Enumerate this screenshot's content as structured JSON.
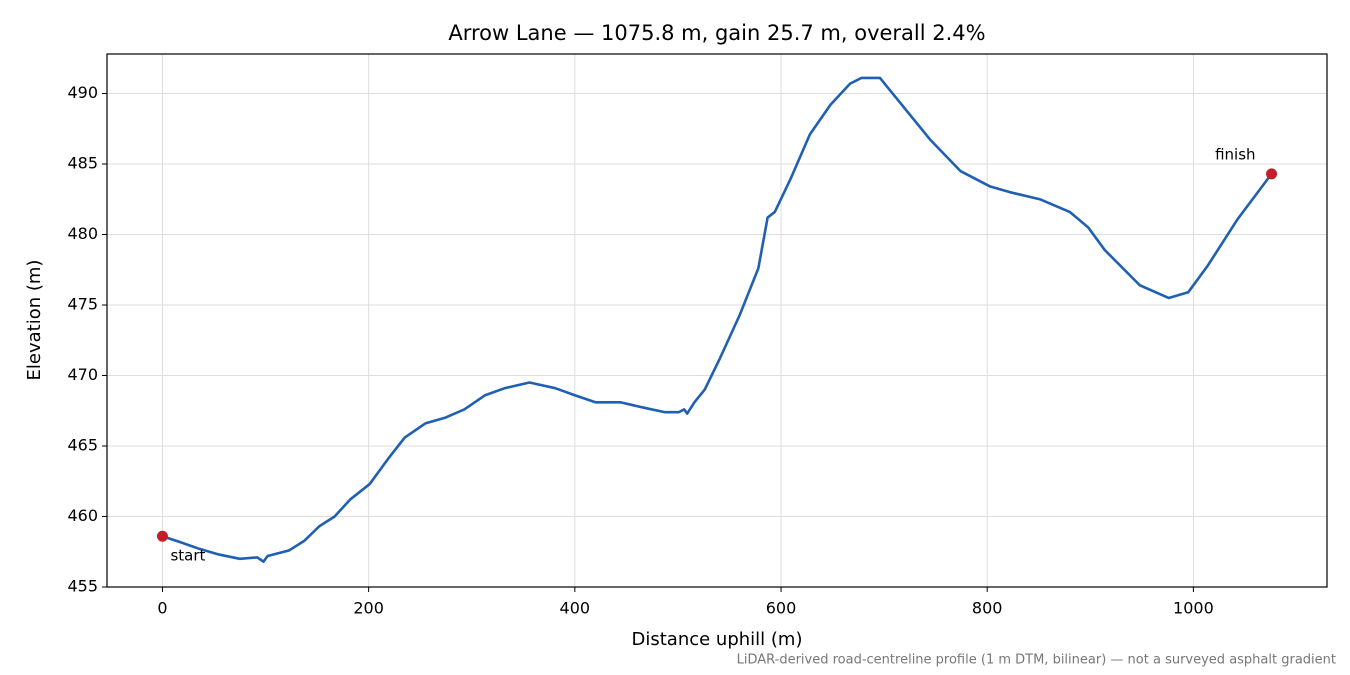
{
  "chart_data": {
    "type": "line",
    "title": "Arrow Lane — 1075.8 m, gain 25.7 m, overall 2.4%",
    "x_label": "Distance uphill (m)",
    "y_label": "Elevation (m)",
    "note": "LiDAR-derived road-centreline profile (1 m DTM, bilinear) — not a surveyed asphalt gradient",
    "x": [
      0,
      16.5,
      36,
      55,
      75,
      92,
      98,
      102,
      123,
      138,
      152,
      167,
      182,
      201,
      220,
      235,
      255,
      274,
      293,
      313,
      332,
      356,
      381,
      400,
      420,
      444,
      468,
      487,
      501,
      506,
      509,
      516,
      526,
      540,
      560,
      578,
      587,
      594,
      609,
      628,
      648,
      667,
      678,
      696,
      716,
      745,
      774,
      803,
      822,
      851,
      880,
      898,
      914,
      948,
      976,
      995,
      1014,
      1043,
      1075.8
    ],
    "series": [
      {
        "color": "#1f5fb4",
        "values": [
          458.6,
          458.2,
          457.7,
          457.3,
          457.0,
          457.1,
          456.8,
          457.2,
          457.6,
          458.3,
          459.3,
          460.0,
          461.2,
          462.3,
          464.2,
          465.6,
          466.6,
          467.0,
          467.6,
          468.6,
          469.1,
          469.5,
          469.1,
          468.6,
          468.1,
          468.1,
          467.7,
          467.4,
          467.4,
          467.6,
          467.3,
          468.1,
          469.0,
          471.1,
          474.3,
          477.6,
          481.2,
          481.6,
          483.9,
          487.1,
          489.2,
          490.7,
          491.1,
          491.1,
          489.3,
          486.7,
          484.5,
          483.4,
          483.0,
          482.5,
          481.6,
          480.5,
          478.9,
          476.4,
          475.5,
          475.9,
          477.8,
          481.1,
          484.3
        ]
      }
    ],
    "annotations": [
      {
        "text": "start",
        "x": 0,
        "y": 458.6,
        "color": "#c41e2a"
      },
      {
        "text": "finish",
        "x": 1075.8,
        "y": 484.3,
        "color": "#c41e2a"
      }
    ],
    "xlim": [
      -53.79,
      1129.59
    ],
    "ylim": [
      455,
      492.8
    ],
    "xticks": [
      0,
      200,
      400,
      600,
      800,
      1000
    ],
    "yticks": [
      455,
      460,
      465,
      470,
      475,
      480,
      485,
      490
    ],
    "grid": true
  }
}
